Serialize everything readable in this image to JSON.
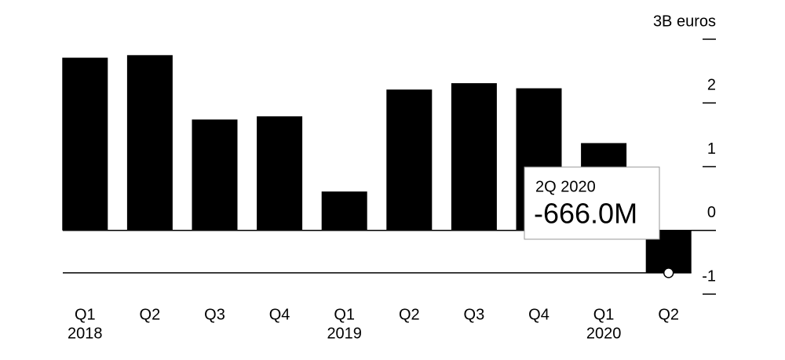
{
  "chart_data": {
    "type": "bar",
    "categories": [
      "Q1",
      "Q2",
      "Q3",
      "Q4",
      "Q1",
      "Q2",
      "Q3",
      "Q4",
      "Q1",
      "Q2"
    ],
    "years": [
      "2018",
      null,
      null,
      null,
      "2019",
      null,
      null,
      null,
      "2020",
      null
    ],
    "values": [
      2.71,
      2.75,
      1.74,
      1.79,
      0.61,
      2.21,
      2.31,
      2.23,
      1.37,
      -0.666
    ],
    "value_labels": [
      null,
      null,
      null,
      null,
      null,
      null,
      null,
      null,
      null,
      "-666.0M"
    ],
    "tooltip_title": "2Q 2020",
    "color": "#000000",
    "ylim": [
      -1,
      3
    ],
    "yticks": [
      -1,
      0,
      1,
      2,
      {
        "value": 3,
        "label": "3B euros"
      }
    ]
  }
}
